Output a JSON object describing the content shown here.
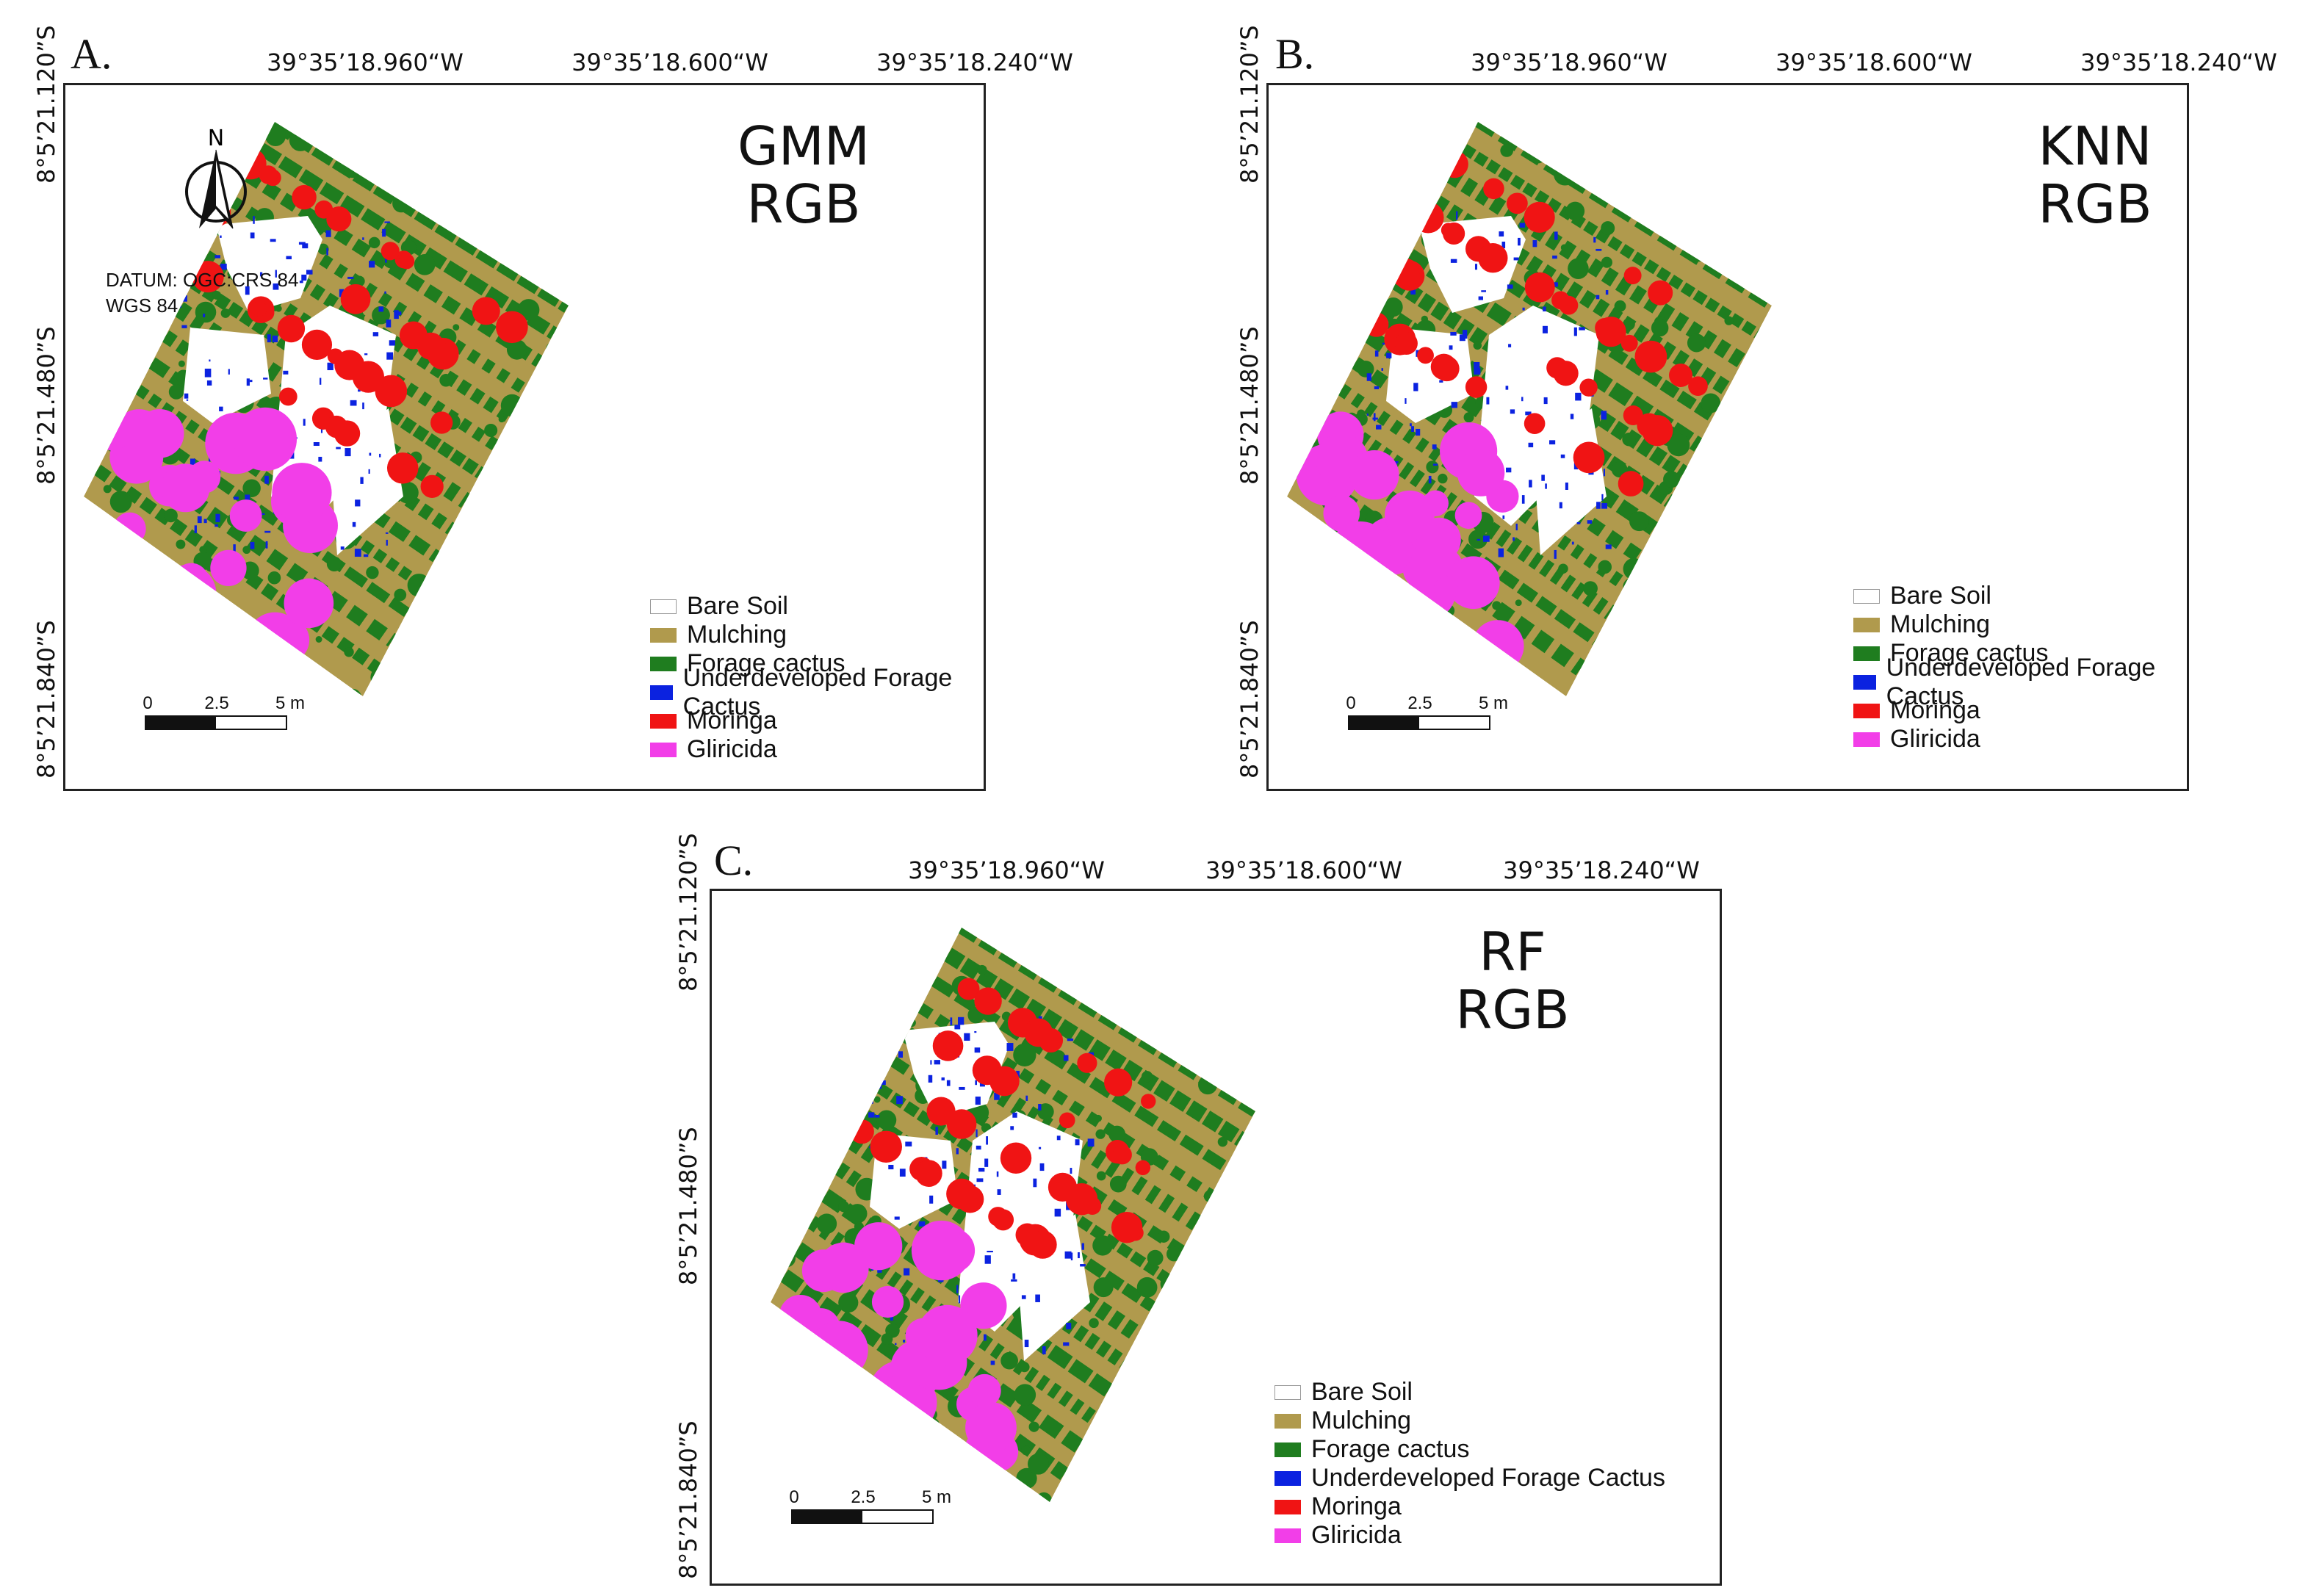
{
  "colors": {
    "bare_soil": "#ffffff",
    "mulching": "#b09a4d",
    "forage_cactus": "#1f7d1f",
    "underdeveloped": "#0b22e0",
    "moringa": "#f01414",
    "gliricida": "#f23ee8"
  },
  "longitude_labels": [
    "39°35’18.960“W",
    "39°35’18.600“W",
    "39°35’18.240“W"
  ],
  "latitude_labels": [
    "8°5’21.120”S",
    "8°5’21.480”S",
    "8°5’21.840”S"
  ],
  "legend": [
    {
      "label": "Bare Soil",
      "color": "#ffffff"
    },
    {
      "label": "Mulching",
      "color": "#b09a4d"
    },
    {
      "label": "Forage cactus",
      "color": "#1f7d1f"
    },
    {
      "label": "Underdeveloped Forage Cactus",
      "color": "#0b22e0"
    },
    {
      "label": "Moringa",
      "color": "#f01414"
    },
    {
      "label": "Gliricida",
      "color": "#f23ee8"
    }
  ],
  "scalebar": {
    "ticks": [
      "0",
      "2.5",
      "5 m"
    ]
  },
  "north_label": "N",
  "datum": [
    "DATUM: OGC:CRS 84",
    "WGS 84"
  ],
  "panels": [
    {
      "letter": "A.",
      "method": "GMM",
      "band": "RGB"
    },
    {
      "letter": "B.",
      "method": "KNN",
      "band": "RGB"
    },
    {
      "letter": "C.",
      "method": "RF",
      "band": "RGB"
    }
  ]
}
